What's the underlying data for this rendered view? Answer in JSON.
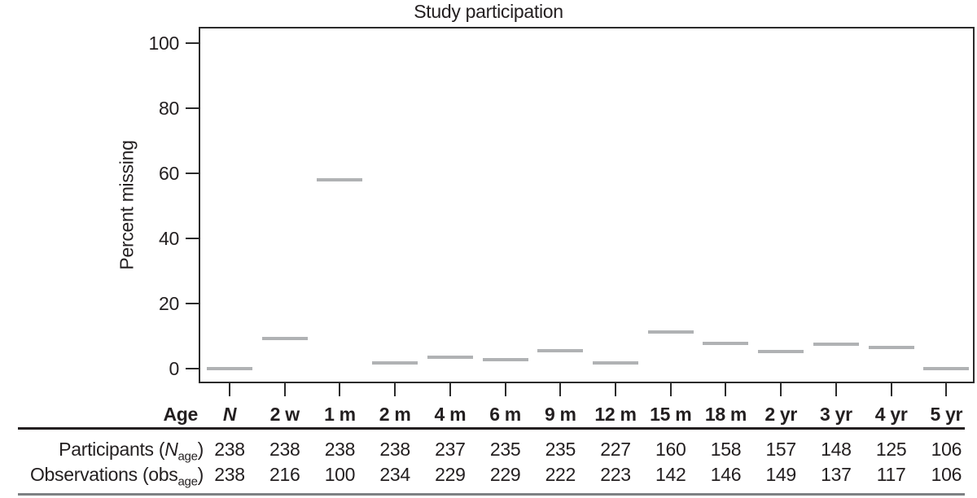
{
  "title": "Study participation",
  "axes": {
    "x_label": "Age",
    "y_label": "Percent missing"
  },
  "chart_data": {
    "type": "scatter",
    "marker": "horizontal-dash",
    "title": "Study participation",
    "xlabel": "Age",
    "ylabel": "Percent missing",
    "ylim": [
      0,
      100
    ],
    "y_ticks": [
      0,
      20,
      40,
      60,
      80,
      100
    ],
    "grid": false,
    "legend": "none",
    "categories": [
      "N",
      "2 w",
      "1 m",
      "2 m",
      "4 m",
      "6 m",
      "9 m",
      "12 m",
      "15 m",
      "18 m",
      "2 yr",
      "3 yr",
      "4 yr",
      "5 yr"
    ],
    "percent_missing": [
      0,
      9.2,
      58.0,
      1.7,
      3.4,
      2.6,
      5.5,
      1.8,
      11.3,
      7.6,
      5.1,
      7.4,
      6.4,
      0
    ]
  },
  "table": {
    "rows": [
      {
        "label_pre": "Participants (",
        "label_italic": "N",
        "label_sub": "age",
        "label_post": ")",
        "values": [
          "238",
          "238",
          "238",
          "238",
          "237",
          "235",
          "235",
          "227",
          "160",
          "158",
          "157",
          "148",
          "125",
          "106"
        ]
      },
      {
        "label_pre": "Observations (obs",
        "label_sub": "age",
        "label_post": ")",
        "values": [
          "238",
          "216",
          "100",
          "234",
          "229",
          "229",
          "222",
          "223",
          "142",
          "146",
          "149",
          "137",
          "117",
          "106"
        ]
      }
    ]
  },
  "colors": {
    "dash": "#b0b2b4",
    "text": "#231f20",
    "axis": "#2b2b2b",
    "rule_top": "#231f20",
    "rule_bottom": "#7e8083"
  }
}
